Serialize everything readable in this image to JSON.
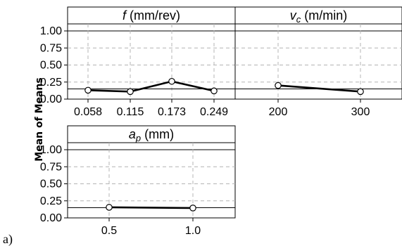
{
  "chart_data": {
    "type": "line",
    "ylabel": "Mean of Means",
    "panel_label": "a)",
    "ylim": [
      0,
      1.0
    ],
    "yticks": [
      "0.00",
      "0.25",
      "0.50",
      "0.75",
      "1.00"
    ],
    "reference_line": 0.15,
    "grid": true,
    "panels": [
      {
        "title_var": "f",
        "title_sub": "",
        "title_unit": " (mm/rev)",
        "categories": [
          "0.058",
          "0.115",
          "0.173",
          "0.249"
        ],
        "values": [
          0.13,
          0.11,
          0.26,
          0.12
        ]
      },
      {
        "title_var": "v",
        "title_sub": "c",
        "title_unit": " (m/min)",
        "categories": [
          "200",
          "300"
        ],
        "values": [
          0.2,
          0.11
        ]
      },
      {
        "title_var": "a",
        "title_sub": "p",
        "title_unit": " (mm)",
        "categories": [
          "0.5",
          "1.0"
        ],
        "values": [
          0.155,
          0.145
        ]
      }
    ]
  }
}
